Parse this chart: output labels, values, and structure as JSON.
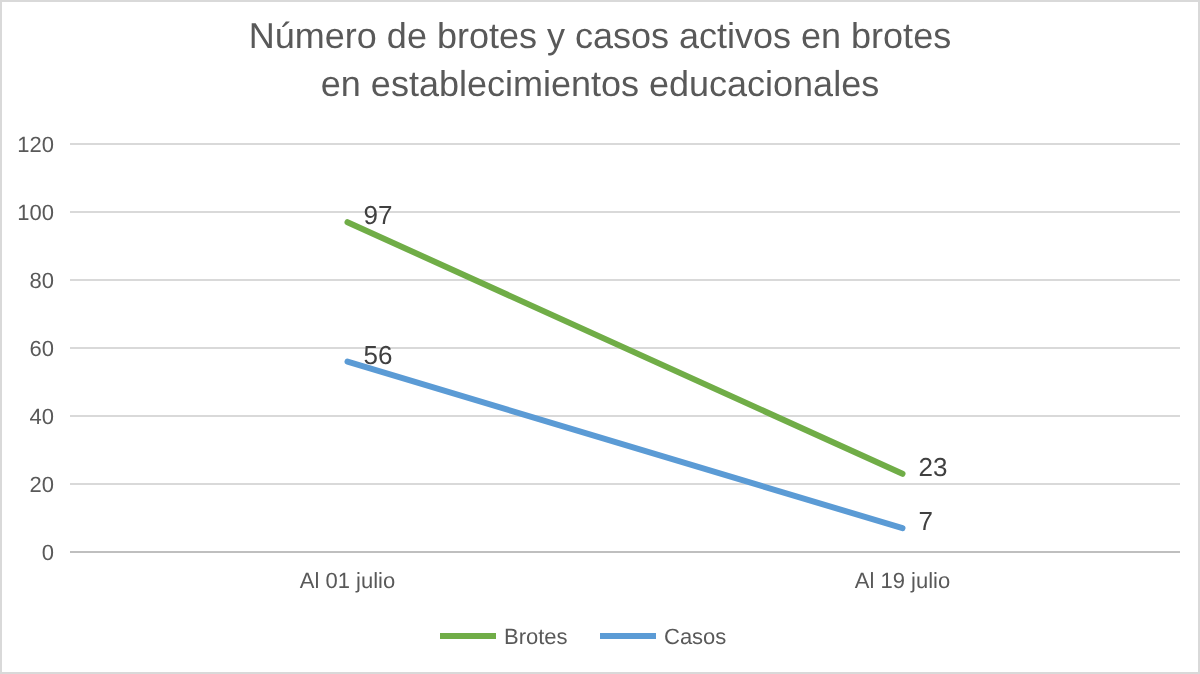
{
  "chart_data": {
    "type": "line",
    "title": "Número de brotes y casos activos en brotes en establecimientos educacionales",
    "categories": [
      "Al 01 julio",
      "Al 19 julio"
    ],
    "series": [
      {
        "name": "Brotes",
        "color": "#70ad47",
        "values": [
          97,
          23
        ]
      },
      {
        "name": "Casos",
        "color": "#5b9bd5",
        "values": [
          56,
          7
        ]
      }
    ],
    "ylim": [
      0,
      120
    ],
    "yticks": [
      0,
      20,
      40,
      60,
      80,
      100,
      120
    ],
    "grid": "y",
    "legend": "bottom",
    "data_labels": true,
    "marker": "none",
    "line_style": "solid"
  }
}
